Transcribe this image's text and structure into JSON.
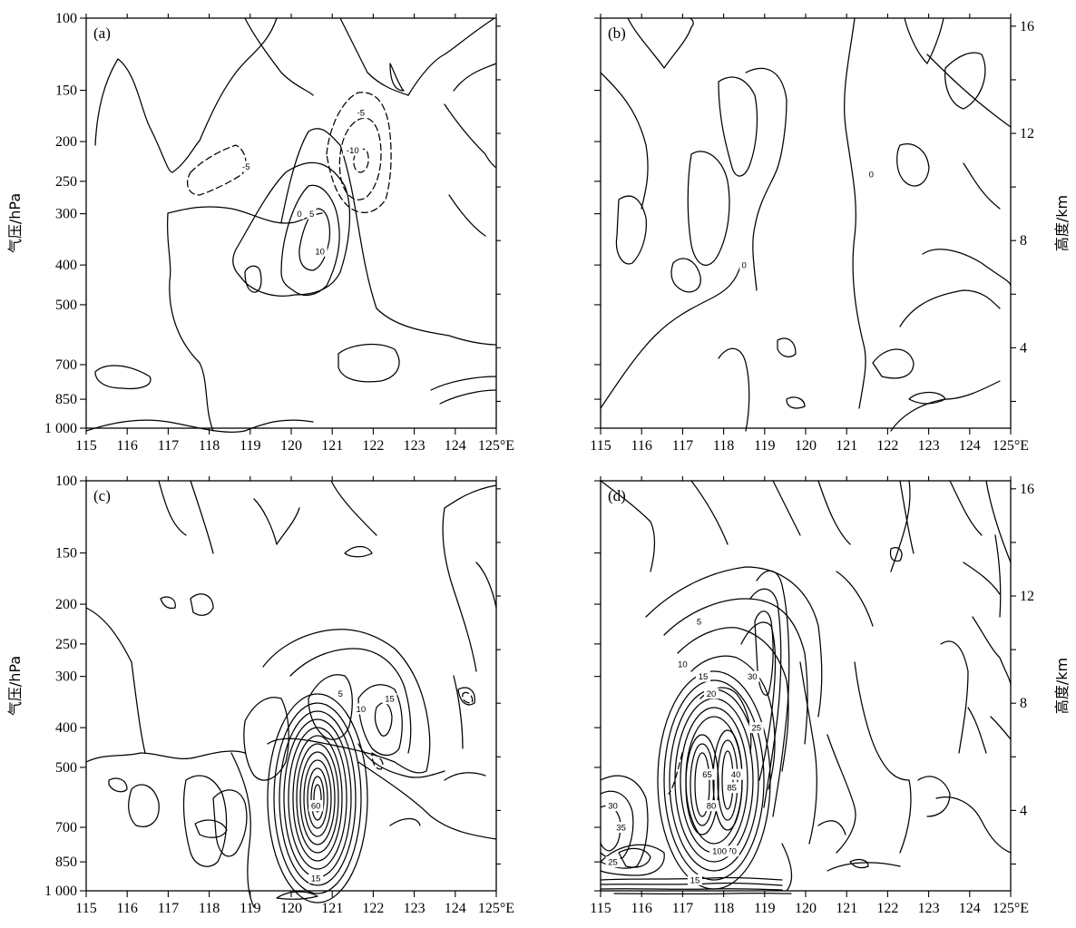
{
  "chart_data": {
    "type": "contour",
    "units": {
      "x": "°E",
      "y_left": "hPa",
      "y_right": "km"
    },
    "panels": [
      {
        "label": "(a)",
        "left_axis_title": "气压/hPa",
        "right_axis_title": "",
        "features": [
          {
            "level": "0",
            "lon": 120.2,
            "p": 300
          },
          {
            "level": "5",
            "lon": 120.5,
            "p": 300
          },
          {
            "level": "10",
            "lon": 120.7,
            "p": 370
          },
          {
            "level": "-5",
            "lon": 118.9,
            "p": 230
          },
          {
            "level": "-5",
            "lon": 121.7,
            "p": 170
          },
          {
            "level": "-10",
            "lon": 121.5,
            "p": 210
          }
        ]
      },
      {
        "label": "(b)",
        "left_axis_title": "",
        "right_axis_title": "高度/km",
        "features": [
          {
            "level": "0",
            "lon": 118.5,
            "p": 400
          },
          {
            "level": "0",
            "lon": 121.6,
            "p": 240
          }
        ]
      },
      {
        "label": "(c)",
        "left_axis_title": "气压/hPa",
        "right_axis_title": "",
        "features": [
          {
            "level": "5",
            "lon": 121.2,
            "p": 330
          },
          {
            "level": "10",
            "lon": 121.7,
            "p": 360
          },
          {
            "level": "15",
            "lon": 122.4,
            "p": 340
          },
          {
            "level": "20",
            "lon": 120.6,
            "p": 620
          },
          {
            "level": "40",
            "lon": 120.6,
            "p": 620
          },
          {
            "level": "60",
            "lon": 120.6,
            "p": 620
          },
          {
            "level": "15",
            "lon": 120.6,
            "p": 930
          }
        ]
      },
      {
        "label": "(d)",
        "left_axis_title": "",
        "right_axis_title": "高度/km",
        "features": [
          {
            "level": "5",
            "lon": 117.4,
            "p": 220
          },
          {
            "level": "10",
            "lon": 117.0,
            "p": 280
          },
          {
            "level": "15",
            "lon": 117.5,
            "p": 300
          },
          {
            "level": "20",
            "lon": 117.7,
            "p": 330
          },
          {
            "level": "30",
            "lon": 118.7,
            "p": 300
          },
          {
            "level": "25",
            "lon": 118.8,
            "p": 400
          },
          {
            "level": "40",
            "lon": 118.3,
            "p": 520
          },
          {
            "level": "65",
            "lon": 117.6,
            "p": 520
          },
          {
            "level": "80",
            "lon": 117.7,
            "p": 620
          },
          {
            "level": "85",
            "lon": 118.2,
            "p": 560
          },
          {
            "level": "70",
            "lon": 118.2,
            "p": 800
          },
          {
            "level": "100",
            "lon": 117.9,
            "p": 800
          },
          {
            "level": "30",
            "lon": 115.3,
            "p": 620
          },
          {
            "level": "35",
            "lon": 115.5,
            "p": 700
          },
          {
            "level": "25",
            "lon": 115.3,
            "p": 850
          },
          {
            "level": "15",
            "lon": 117.3,
            "p": 940
          }
        ]
      }
    ],
    "x_ticks": [
      "115",
      "116",
      "117",
      "118",
      "119",
      "120",
      "121",
      "122",
      "123",
      "124",
      "125°E"
    ],
    "y_left_ticks": [
      "100",
      "150",
      "200",
      "250",
      "300",
      "400",
      "500",
      "700",
      "850",
      "1 000"
    ],
    "y_right_ticks": [
      "4",
      "8",
      "12",
      "16"
    ],
    "xlim": [
      115,
      125
    ],
    "ylim_hPa": [
      1000,
      100
    ]
  }
}
